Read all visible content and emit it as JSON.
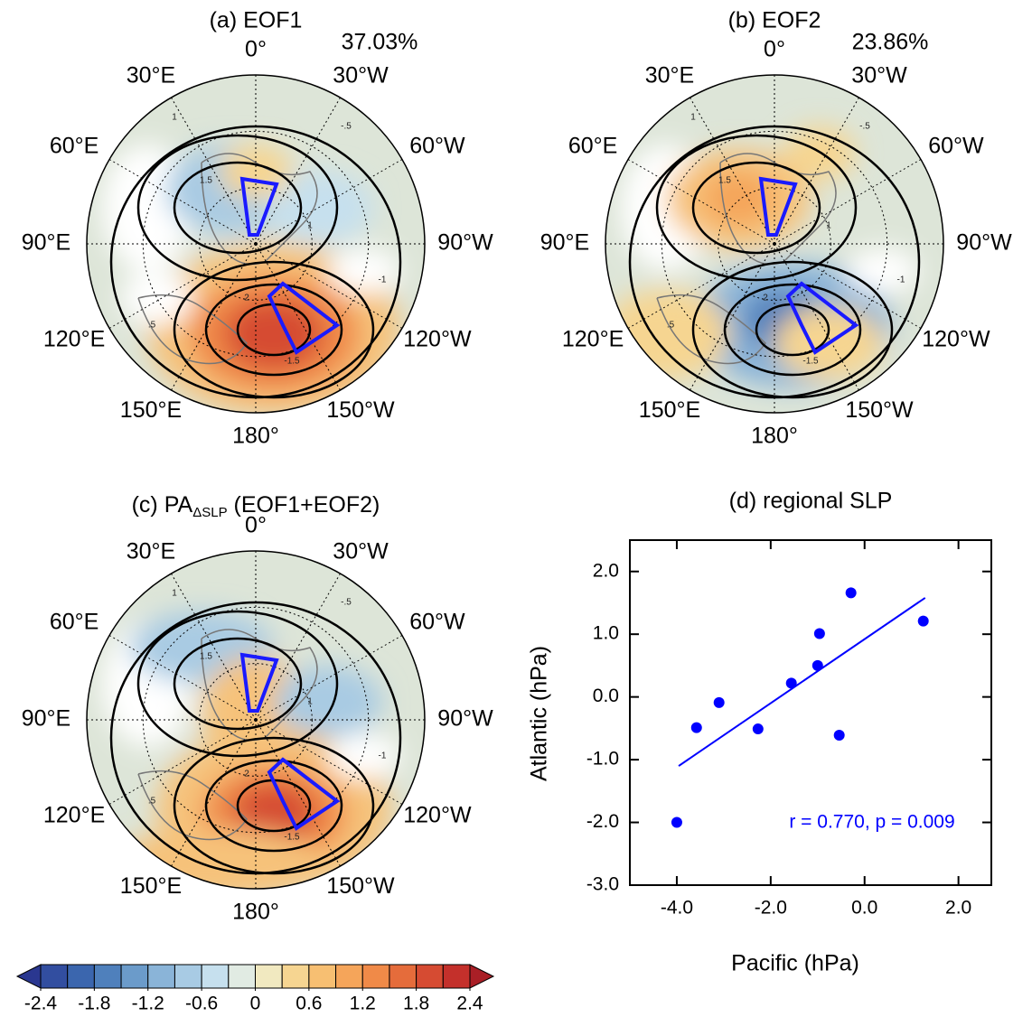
{
  "panels": [
    {
      "title": "(a) EOF1",
      "variance": "37.03%",
      "lon_labels": [
        "0°",
        "30°W",
        "60°W",
        "90°W",
        "120°W",
        "150°W",
        "180°",
        "150°E",
        "120°E",
        "90°E",
        "60°E",
        "30°E"
      ],
      "contour_labels": [
        "1.5",
        "1",
        "2",
        "-1.5",
        ".5",
        "-.5",
        "1",
        "-1"
      ]
    },
    {
      "title": "(b) EOF2",
      "variance": "23.86%",
      "lon_labels": [
        "0°",
        "30°W",
        "60°W",
        "90°W",
        "120°W",
        "150°W",
        "180°",
        "150°E",
        "120°E",
        "90°E",
        "60°E",
        "30°E"
      ],
      "contour_labels": [
        "1.5",
        "1",
        "2",
        "-1.5",
        ".5",
        "-.5",
        "1",
        "-1"
      ]
    },
    {
      "title_prefix": "(c) PA",
      "title_sub": "ΔSLP",
      "title_suffix": " (EOF1+EOF2)",
      "lon_labels": [
        "0°",
        "30°W",
        "60°W",
        "90°W",
        "120°W",
        "150°W",
        "180°",
        "150°E",
        "120°E",
        "90°E",
        "60°E",
        "30°E"
      ],
      "contour_labels": [
        "1.5",
        "1",
        "2",
        "-1.5",
        ".5",
        "-.5",
        "1",
        "-1"
      ]
    }
  ],
  "colorbar": {
    "range": [
      -2.4,
      2.4
    ],
    "ticks": [
      -2.4,
      -1.8,
      -1.2,
      -0.6,
      0,
      0.6,
      1.2,
      1.8,
      2.4
    ],
    "colors": [
      "#324ea0",
      "#3b66ae",
      "#4f80bc",
      "#6b9bca",
      "#8ab4d8",
      "#a8cbe4",
      "#c6e0ee",
      "#e1ebe3",
      "#f1e9c0",
      "#f6d591",
      "#f7bf72",
      "#f5a55a",
      "#f08a48",
      "#e56c3b",
      "#d64b32",
      "#c4302b"
    ],
    "extend_colors": [
      "#2a3790",
      "#a91f26"
    ]
  },
  "chart_data": {
    "type": "scatter",
    "title": "(d) regional SLP",
    "x_label": "Pacific (hPa)",
    "y_label": "Atlantic (hPa)",
    "x": [
      -4.0,
      -3.58,
      -3.1,
      -2.27,
      -1.56,
      -1.0,
      -0.96,
      -0.54,
      -0.29,
      1.25
    ],
    "values": [
      -2.0,
      -0.49,
      -0.09,
      -0.51,
      0.22,
      0.5,
      1.01,
      -0.61,
      1.66,
      1.21
    ],
    "color": "#0000ff",
    "fit_line": {
      "x": [
        -3.96,
        1.29
      ],
      "y": [
        -1.1,
        1.58
      ]
    },
    "annotation": "r = 0.770, p = 0.009",
    "xlim": [
      -5.0,
      2.7
    ],
    "ylim": [
      -3.0,
      2.5
    ],
    "xticks": [
      {
        "value": -4,
        "label": "-4.0"
      },
      {
        "value": -2,
        "label": "-2.0"
      },
      {
        "value": 0,
        "label": "0.0"
      },
      {
        "value": 2,
        "label": "2.0"
      }
    ],
    "yticks": [
      {
        "value": -3,
        "label": "-3.0"
      },
      {
        "value": -2,
        "label": "-2.0"
      },
      {
        "value": -1,
        "label": "-1.0"
      },
      {
        "value": 0,
        "label": "0.0"
      },
      {
        "value": 1,
        "label": "1.0"
      },
      {
        "value": 2,
        "label": "2.0"
      }
    ]
  }
}
